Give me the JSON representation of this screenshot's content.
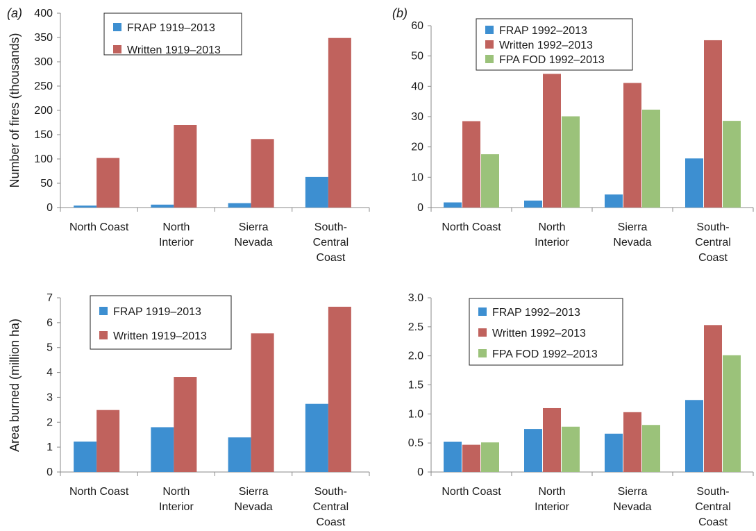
{
  "colors": {
    "FRAP": "#3d8fd1",
    "Written": "#c0625d",
    "FPA FOD": "#9bc27a",
    "axis": "#8a8a8a"
  },
  "chart_data": [
    {
      "type": "bar",
      "panel_label": "(a)",
      "title": "",
      "xlabel": "",
      "ylabel": "Number of fires (thousands)",
      "ylim": [
        0,
        400
      ],
      "yticks": [
        "0",
        "50",
        "100",
        "150",
        "200",
        "250",
        "300",
        "350",
        "400"
      ],
      "categories": [
        [
          "North Coast"
        ],
        [
          "North",
          "Interior"
        ],
        [
          "Sierra",
          "Nevada"
        ],
        [
          "South-",
          "Central",
          "Coast"
        ]
      ],
      "series": [
        {
          "name": "FRAP 1919–2013",
          "color_key": "FRAP",
          "values": [
            4,
            6,
            9,
            63
          ]
        },
        {
          "name": "Written 1919–2013",
          "color_key": "Written",
          "values": [
            102,
            170,
            141,
            349
          ]
        }
      ],
      "legend": "top-left"
    },
    {
      "type": "bar",
      "panel_label": "(b)",
      "title": "",
      "xlabel": "",
      "ylabel": "",
      "ylim": [
        0,
        60
      ],
      "yticks": [
        "0",
        "10",
        "20",
        "30",
        "40",
        "50",
        "60"
      ],
      "categories": [
        [
          "North Coast"
        ],
        [
          "North",
          "Interior"
        ],
        [
          "Sierra",
          "Nevada"
        ],
        [
          "South-",
          "Central",
          "Coast"
        ]
      ],
      "series": [
        {
          "name": "FRAP 1992–2013",
          "color_key": "FRAP",
          "values": [
            1.7,
            2.3,
            4.3,
            16.2
          ]
        },
        {
          "name": "Written 1992–2013",
          "color_key": "Written",
          "values": [
            28.5,
            44.1,
            41.1,
            55.2
          ]
        },
        {
          "name": "FPA FOD 1992–2013",
          "color_key": "FPA FOD",
          "values": [
            17.6,
            30.1,
            32.3,
            28.6
          ]
        }
      ],
      "legend": "top-left"
    },
    {
      "type": "bar",
      "panel_label": "",
      "title": "",
      "xlabel": "",
      "ylabel": "Area burned (million ha)",
      "ylim": [
        0,
        7
      ],
      "yticks": [
        "0",
        "1",
        "2",
        "3",
        "4",
        "5",
        "6",
        "7"
      ],
      "categories": [
        [
          "North Coast"
        ],
        [
          "North",
          "Interior"
        ],
        [
          "Sierra",
          "Nevada"
        ],
        [
          "South-",
          "Central",
          "Coast"
        ]
      ],
      "series": [
        {
          "name": "FRAP 1919–2013",
          "color_key": "FRAP",
          "values": [
            1.22,
            1.8,
            1.39,
            2.74
          ]
        },
        {
          "name": "Written 1919–2013",
          "color_key": "Written",
          "values": [
            2.49,
            3.82,
            5.57,
            6.64
          ]
        }
      ],
      "legend": "top-left"
    },
    {
      "type": "bar",
      "panel_label": "",
      "title": "",
      "xlabel": "",
      "ylabel": "",
      "ylim": [
        0,
        3
      ],
      "yticks": [
        "0",
        "0.5",
        "1.0",
        "1.5",
        "2.0",
        "2.5",
        "3.0"
      ],
      "categories": [
        [
          "North Coast"
        ],
        [
          "North",
          "Interior"
        ],
        [
          "Sierra",
          "Nevada"
        ],
        [
          "South-",
          "Central",
          "Coast"
        ]
      ],
      "series": [
        {
          "name": "FRAP 1992–2013",
          "color_key": "FRAP",
          "values": [
            0.52,
            0.74,
            0.66,
            1.24
          ]
        },
        {
          "name": "Written 1992–2013",
          "color_key": "Written",
          "values": [
            0.47,
            1.1,
            1.03,
            2.53
          ]
        },
        {
          "name": "FPA FOD 1992–2013",
          "color_key": "FPA FOD",
          "values": [
            0.51,
            0.78,
            0.81,
            2.01
          ]
        }
      ],
      "legend": "top-left"
    }
  ]
}
